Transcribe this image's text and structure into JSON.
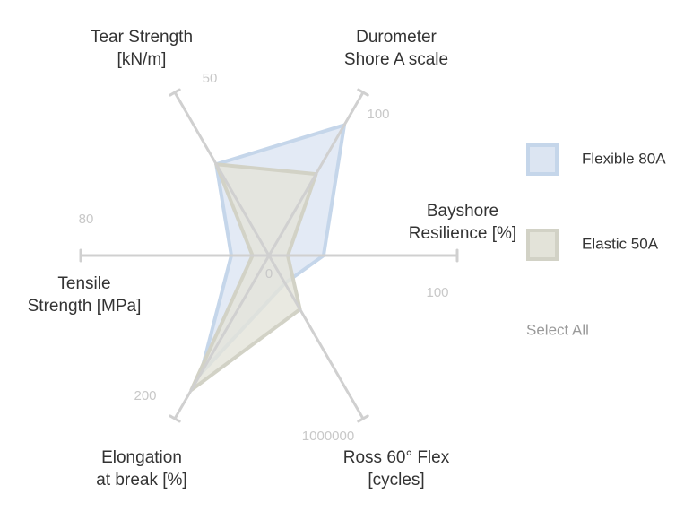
{
  "chart_data": {
    "type": "radar",
    "axes": [
      {
        "id": "durometer",
        "label_lines": [
          "Durometer",
          "Shore A scale"
        ],
        "min_label": "0",
        "max_label": "100",
        "max": 100
      },
      {
        "id": "bayshore",
        "label_lines": [
          "Bayshore",
          "Resilience [%]"
        ],
        "min_label": "0",
        "max_label": "100",
        "max": 100
      },
      {
        "id": "ross",
        "label_lines": [
          "Ross 60° Flex",
          "[cycles]"
        ],
        "min_label": "0",
        "max_label": "1000000",
        "max": 1000000
      },
      {
        "id": "elongation",
        "label_lines": [
          "Elongation",
          "at break [%]"
        ],
        "min_label": "0",
        "max_label": "200",
        "max": 200
      },
      {
        "id": "tensile",
        "label_lines": [
          "Tensile",
          "Strength [MPa]"
        ],
        "min_label": "0",
        "max_label": "80",
        "max": 80
      },
      {
        "id": "tear",
        "label_lines": [
          "Tear Strength",
          "[kN/m]"
        ],
        "min_label": "0",
        "max_label": "50",
        "max": 50
      }
    ],
    "center_label": "0",
    "series": [
      {
        "name": "Flexible 80A",
        "fill": "#dce5f2",
        "stroke": "#c5d6ea",
        "values": [
          80,
          29,
          170000,
          145,
          16,
          28
        ]
      },
      {
        "name": "Elastic 50A",
        "fill": "#e3e3d9",
        "stroke": "#d2d2c6",
        "values": [
          50,
          10,
          330000,
          165,
          7,
          28
        ]
      }
    ],
    "legend_position": "right",
    "grid": false
  },
  "legend": {
    "select_all_label": "Select All"
  }
}
